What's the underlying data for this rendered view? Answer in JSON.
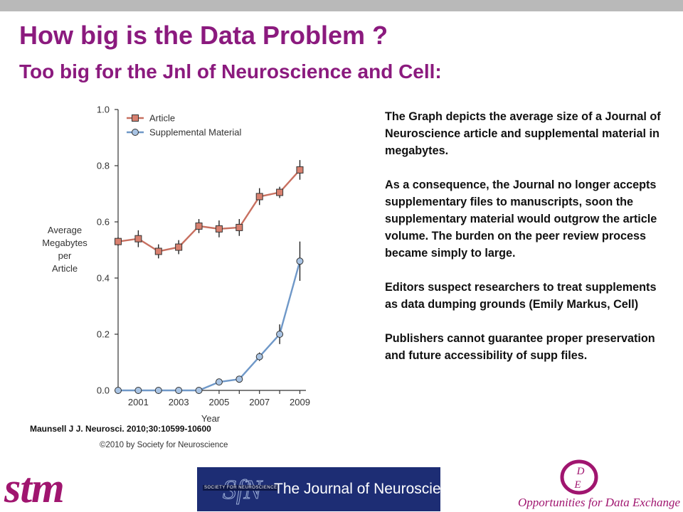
{
  "slide": {
    "title": "How big is the Data Problem ?",
    "subtitle": "Too big for the Jnl of Neuroscience and Cell:",
    "citation": "Maunsell J J. Neurosci. 2010;30:10599-10600",
    "copyright": "©2010 by Society for Neuroscience",
    "description": [
      "The Graph depicts the average size of a Journal of Neuroscience article and supplemental material in megabytes.",
      "As a consequence, the Journal no longer accepts supplementary files to manuscripts, soon the supplementary material would outgrow the article volume. The burden on the peer review process became simply to large.",
      "Editors suspect researchers to treat supplements as data dumping grounds (Emily Markus, Cell)",
      "Publishers cannot guarantee  proper preservation and future accessibility of supp files."
    ]
  },
  "logos": {
    "stm": "stm",
    "jn_title": "The Journal of Neuroscience",
    "sfn_text": "SOCIETY FOR NEUROSCIENCE",
    "sfn_monogram": "SfN",
    "ode_text": "Opportunities for Data Exchange",
    "ode_monogram_top": "D",
    "ode_monogram_bottom": "E"
  },
  "colors": {
    "title": "#8b1a7e",
    "article_series": "#c87060",
    "article_marker": "#d8806f",
    "supplemental_series": "#6f98c8",
    "supplemental_marker": "#a9c4e4",
    "brand_magenta": "#a0156f",
    "banner_blue": "#1d2d74"
  },
  "chart_data": {
    "type": "line",
    "xlabel": "Year",
    "ylabel": "Average Megabytes per Article",
    "xlim": [
      2000,
      2009.3
    ],
    "ylim": [
      0,
      1.0
    ],
    "xticks": [
      2001,
      2003,
      2005,
      2007,
      2009
    ],
    "yticks": [
      "0.0",
      "0.2",
      "0.4",
      "0.6",
      "0.8",
      "1.0"
    ],
    "legend_position": "top-left",
    "series": [
      {
        "name": "Article",
        "marker": "square",
        "x": [
          2000,
          2001,
          2002,
          2003,
          2004,
          2005,
          2006,
          2007,
          2008,
          2009
        ],
        "values": [
          0.53,
          0.54,
          0.495,
          0.51,
          0.585,
          0.575,
          0.58,
          0.69,
          0.705,
          0.785
        ],
        "errors": [
          0.015,
          0.03,
          0.025,
          0.025,
          0.025,
          0.03,
          0.03,
          0.03,
          0.02,
          0.035
        ]
      },
      {
        "name": "Supplemental Material",
        "marker": "circle",
        "x": [
          2000,
          2001,
          2002,
          2003,
          2004,
          2005,
          2006,
          2007,
          2008,
          2009
        ],
        "values": [
          0.0,
          0.0,
          0.0,
          0.0,
          0.0,
          0.03,
          0.04,
          0.12,
          0.2,
          0.46
        ],
        "errors": [
          0,
          0,
          0,
          0,
          0,
          0,
          0.01,
          0.015,
          0.035,
          0.07
        ]
      }
    ]
  }
}
